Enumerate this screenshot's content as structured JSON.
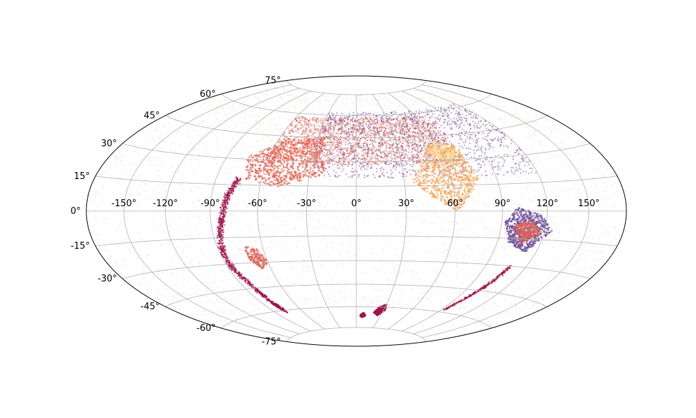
{
  "chart_data": {
    "type": "scatter",
    "projection": "aitoff-hammer",
    "title": "",
    "xlabel": "",
    "ylabel": "",
    "grid": true,
    "xlim": [
      -180,
      180
    ],
    "ylim": [
      -90,
      90
    ],
    "x_ticks": [
      -150,
      -120,
      -90,
      -60,
      -30,
      0,
      30,
      60,
      90,
      120,
      150
    ],
    "x_tick_labels": [
      "-150°",
      "-120°",
      "-90°",
      "-60°",
      "-30°",
      "0°",
      "30°",
      "60°",
      "90°",
      "120°",
      "150°"
    ],
    "y_ticks": [
      -75,
      -60,
      -45,
      -30,
      -15,
      0,
      15,
      30,
      45,
      60,
      75
    ],
    "y_tick_labels": [
      "-75°",
      "-60°",
      "-45°",
      "-30°",
      "-15°",
      "0°",
      "15°",
      "30°",
      "45°",
      "60°",
      "75°"
    ],
    "series": [
      {
        "color": "#f5b7a6",
        "kind": "sparse-background",
        "region": {
          "lon": [
            -180,
            180
          ],
          "lat": [
            -60,
            75
          ]
        },
        "count": 2200
      },
      {
        "color": "#e05a4a",
        "kind": "dense-band",
        "region": {
          "lon": [
            -60,
            70
          ],
          "lat": [
            28,
            58
          ]
        },
        "count": 1700
      },
      {
        "color": "#7b559b",
        "kind": "dense-band",
        "region": {
          "lon": [
            -30,
            120
          ],
          "lat": [
            20,
            62
          ]
        },
        "count": 1400
      },
      {
        "color": "#e8604e",
        "kind": "patch",
        "polygon": [
          [
            -75,
            32
          ],
          [
            -55,
            42
          ],
          [
            -25,
            46
          ],
          [
            -20,
            22
          ],
          [
            -50,
            14
          ],
          [
            -70,
            18
          ]
        ],
        "count": 700
      },
      {
        "color": "#f7a55a",
        "kind": "patch",
        "polygon": [
          [
            35,
            18
          ],
          [
            52,
            40
          ],
          [
            60,
            35
          ],
          [
            72,
            40
          ],
          [
            78,
            18
          ],
          [
            62,
            0
          ],
          [
            46,
            8
          ]
        ],
        "count": 700
      },
      {
        "color": "#ffd88a",
        "kind": "patch",
        "polygon": [
          [
            50,
            35
          ],
          [
            58,
            42
          ],
          [
            66,
            40
          ],
          [
            72,
            34
          ],
          [
            62,
            28
          ]
        ],
        "count": 160
      },
      {
        "color": "#6f4f9b",
        "kind": "patch",
        "polygon": [
          [
            92,
            -6
          ],
          [
            100,
            2
          ],
          [
            116,
            -2
          ],
          [
            125,
            -10
          ],
          [
            112,
            -22
          ],
          [
            98,
            -18
          ]
        ],
        "count": 650
      },
      {
        "color": "#e25f4d",
        "kind": "patch",
        "polygon": [
          [
            98,
            -8
          ],
          [
            110,
            -4
          ],
          [
            118,
            -12
          ],
          [
            106,
            -18
          ]
        ],
        "count": 220
      },
      {
        "color": "#a1124a",
        "kind": "stream",
        "path": [
          [
            -75,
            18
          ],
          [
            -80,
            8
          ],
          [
            -83,
            -5
          ],
          [
            -87,
            -18
          ],
          [
            -88,
            -30
          ],
          [
            -83,
            -42
          ],
          [
            -80,
            -55
          ],
          [
            -78,
            -60
          ]
        ],
        "width": 3,
        "count": 900
      },
      {
        "color": "#a1124a",
        "kind": "stream",
        "path": [
          [
            108,
            -30
          ],
          [
            104,
            -40
          ],
          [
            98,
            -50
          ],
          [
            93,
            -58
          ]
        ],
        "width": 2,
        "count": 260
      },
      {
        "color": "#a1124a",
        "kind": "clump",
        "polygon": [
          [
            20,
            -64
          ],
          [
            24,
            -60
          ],
          [
            30,
            -58
          ],
          [
            32,
            -62
          ],
          [
            26,
            -66
          ]
        ],
        "count": 180
      },
      {
        "color": "#a1124a",
        "kind": "clump",
        "polygon": [
          [
            4,
            -66
          ],
          [
            8,
            -64
          ],
          [
            12,
            -66
          ],
          [
            8,
            -68
          ]
        ],
        "count": 80
      },
      {
        "color": "#e25f4d",
        "kind": "patch",
        "polygon": [
          [
            -72,
            -20
          ],
          [
            -64,
            -22
          ],
          [
            -60,
            -30
          ],
          [
            -66,
            -34
          ],
          [
            -72,
            -28
          ]
        ],
        "count": 160
      }
    ]
  }
}
